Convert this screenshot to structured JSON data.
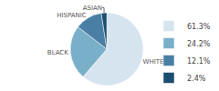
{
  "chart_data": {
    "type": "pie",
    "categories": [
      "WHITE",
      "BLACK",
      "HISPANIC",
      "ASIAN"
    ],
    "values": [
      61.3,
      24.2,
      12.1,
      2.4
    ],
    "value_labels": [
      "61.3%",
      "24.2%",
      "12.1%",
      "2.4%"
    ],
    "colors": [
      "#d6e4f0",
      "#7aafc9",
      "#4a7fa5",
      "#1a4e6e"
    ],
    "legend": "right"
  }
}
